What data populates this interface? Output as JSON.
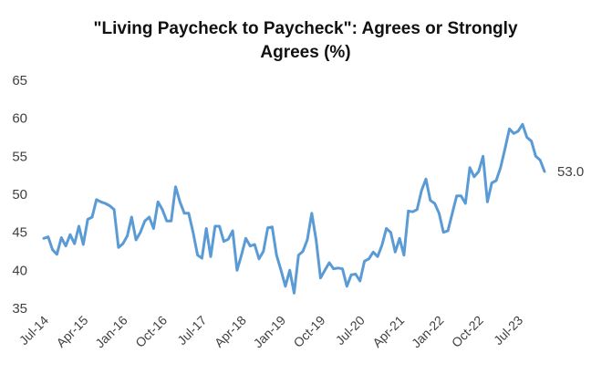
{
  "chart_data": {
    "type": "line",
    "title_lines": [
      "\"Living Paycheck to Paycheck\": Agrees or Strongly",
      "Agrees (%)"
    ],
    "xlabel": "",
    "ylabel": "",
    "ylim": [
      35,
      65
    ],
    "yticks": [
      "65",
      "60",
      "55",
      "50",
      "45",
      "40",
      "35"
    ],
    "x_tick_labels": [
      "Jul-14",
      "Apr-15",
      "Jan-16",
      "Oct-16",
      "Jul-17",
      "Apr-18",
      "Jan-19",
      "Oct-19",
      "Jul-20",
      "Apr-21",
      "Jan-22",
      "Oct-22",
      "Jul-23"
    ],
    "grid": false,
    "legend": "none",
    "colors": {
      "line": "#5B9BD5"
    },
    "end_label": "53.0",
    "series": [
      {
        "values": [
          44.2,
          44.4,
          42.7,
          42.1,
          44.3,
          43.2,
          44.7,
          43.5,
          45.8,
          43.4,
          46.7,
          47.0,
          49.3,
          49.0,
          48.8,
          48.5,
          48.0,
          43.0,
          43.5,
          44.5,
          47.0,
          44.0,
          45.0,
          46.5,
          47.0,
          45.5,
          49.0,
          48.0,
          46.5,
          46.5,
          51.0,
          49.0,
          47.5,
          47.5,
          45.0,
          42.0,
          41.6,
          45.5,
          41.8,
          45.8,
          45.8,
          43.8,
          44.1,
          45.2,
          40.0,
          42.0,
          44.2,
          43.2,
          43.4,
          41.5,
          42.5,
          45.6,
          45.7,
          42.0,
          40.0,
          37.9,
          40.0,
          37.0,
          42.0,
          42.5,
          44.0,
          47.5,
          44.0,
          39.0,
          40.0,
          41.0,
          40.2,
          40.3,
          40.2,
          37.9,
          39.4,
          39.5,
          38.6,
          41.2,
          41.5,
          42.4,
          41.8,
          43.3,
          45.5,
          45.0,
          42.4,
          44.2,
          42.0,
          47.8,
          47.7,
          48.0,
          50.5,
          52.0,
          49.2,
          48.8,
          47.5,
          45.0,
          45.2,
          47.5,
          49.8,
          49.8,
          48.8,
          53.5,
          52.3,
          53.0,
          55.0,
          49.0,
          51.5,
          51.8,
          53.5,
          56.0,
          58.6,
          58.0,
          58.3,
          59.2,
          57.5,
          57.0,
          55.0,
          54.5,
          53.0
        ]
      }
    ]
  }
}
